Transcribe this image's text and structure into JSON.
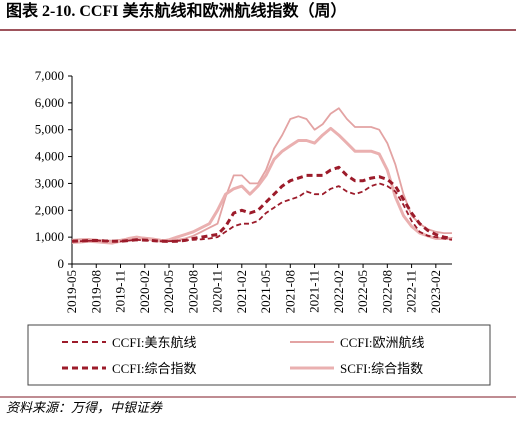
{
  "chart_data": {
    "type": "line",
    "title": "图表 2-10. CCFI 美东航线和欧洲航线指数（周）",
    "source": "资料来源：万得，中银证券",
    "x": [
      "2019-05",
      "2019-06",
      "2019-07",
      "2019-08",
      "2019-09",
      "2019-10",
      "2019-11",
      "2019-12",
      "2020-01",
      "2020-02",
      "2020-03",
      "2020-04",
      "2020-05",
      "2020-06",
      "2020-07",
      "2020-08",
      "2020-09",
      "2020-10",
      "2020-11",
      "2020-12",
      "2021-01",
      "2021-02",
      "2021-03",
      "2021-04",
      "2021-05",
      "2021-06",
      "2021-07",
      "2021-08",
      "2021-09",
      "2021-10",
      "2021-11",
      "2021-12",
      "2022-01",
      "2022-02",
      "2022-03",
      "2022-04",
      "2022-05",
      "2022-06",
      "2022-07",
      "2022-08",
      "2022-09",
      "2022-10",
      "2022-11",
      "2022-12",
      "2023-01",
      "2023-02",
      "2023-03",
      "2023-04"
    ],
    "xticks": [
      "2019-05",
      "2019-08",
      "2019-11",
      "2020-02",
      "2020-05",
      "2020-08",
      "2020-11",
      "2021-02",
      "2021-05",
      "2021-08",
      "2021-11",
      "2022-02",
      "2022-05",
      "2022-08",
      "2022-11",
      "2023-02"
    ],
    "ylim": [
      0,
      7000
    ],
    "yticks": [
      0,
      {
        "value": 1000,
        "label": "1,000"
      },
      {
        "value": 2000,
        "label": "2,000"
      },
      {
        "value": 3000,
        "label": "3,000"
      },
      {
        "value": 4000,
        "label": "4,000"
      },
      {
        "value": 5000,
        "label": "5,000"
      },
      {
        "value": 6000,
        "label": "6,000"
      },
      {
        "value": 7000,
        "label": "7,000"
      }
    ],
    "series": [
      {
        "name": "CCFI:美东航线",
        "color": "#9c1b2a",
        "style": "dashed",
        "thick": false,
        "values": [
          850,
          850,
          860,
          870,
          860,
          850,
          840,
          870,
          900,
          880,
          860,
          850,
          850,
          860,
          880,
          900,
          920,
          950,
          1000,
          1200,
          1400,
          1500,
          1500,
          1600,
          1900,
          2100,
          2300,
          2400,
          2500,
          2700,
          2600,
          2600,
          2800,
          2900,
          2700,
          2600,
          2700,
          2900,
          3000,
          2900,
          2700,
          2200,
          1600,
          1200,
          1050,
          1000,
          950,
          900
        ]
      },
      {
        "name": "CCFI:欧洲航线",
        "color": "#e3a3a3",
        "style": "solid",
        "thick": false,
        "values": [
          900,
          920,
          930,
          900,
          880,
          870,
          900,
          950,
          1000,
          980,
          950,
          900,
          880,
          900,
          950,
          1050,
          1200,
          1350,
          1500,
          2500,
          3300,
          3300,
          3000,
          3000,
          3500,
          4300,
          4800,
          5400,
          5500,
          5400,
          5000,
          5200,
          5600,
          5800,
          5400,
          5100,
          5100,
          5100,
          5000,
          4500,
          3700,
          2600,
          1800,
          1500,
          1300,
          1200,
          1150,
          1150
        ]
      },
      {
        "name": "CCFI:综合指数",
        "color": "#9c1b2a",
        "style": "dashed",
        "thick": true,
        "values": [
          850,
          860,
          870,
          880,
          860,
          850,
          850,
          870,
          900,
          890,
          870,
          850,
          840,
          850,
          880,
          950,
          1000,
          1050,
          1100,
          1400,
          1900,
          2000,
          1900,
          2000,
          2300,
          2600,
          2900,
          3100,
          3200,
          3300,
          3300,
          3300,
          3500,
          3600,
          3300,
          3100,
          3100,
          3200,
          3250,
          3150,
          2900,
          2400,
          1900,
          1500,
          1250,
          1100,
          1000,
          950
        ]
      },
      {
        "name": "SCFI:综合指数",
        "color": "#eab0b0",
        "style": "solid",
        "thick": true,
        "values": [
          800,
          820,
          850,
          830,
          800,
          780,
          850,
          950,
          1000,
          950,
          900,
          850,
          900,
          1000,
          1100,
          1200,
          1350,
          1500,
          2000,
          2600,
          2800,
          2900,
          2600,
          2900,
          3300,
          3900,
          4200,
          4400,
          4600,
          4600,
          4500,
          4800,
          5050,
          4800,
          4500,
          4200,
          4200,
          4200,
          4100,
          3500,
          2500,
          1800,
          1400,
          1150,
          1050,
          950,
          950,
          950
        ]
      }
    ]
  }
}
